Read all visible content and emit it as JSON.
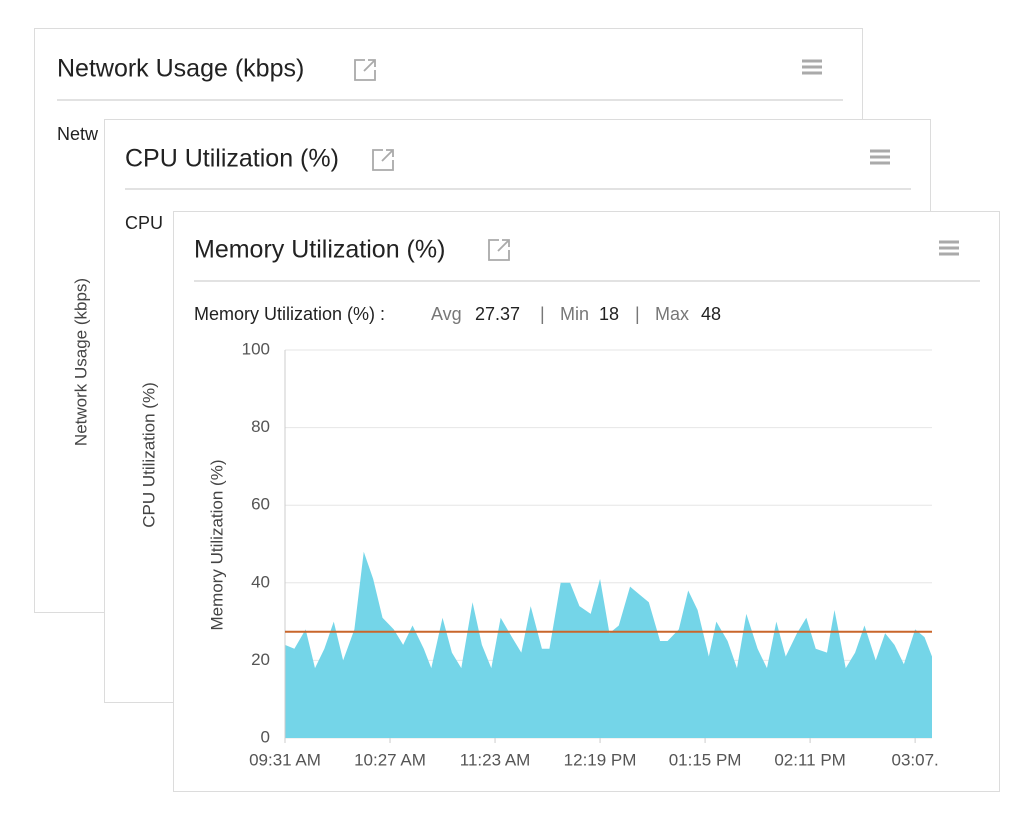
{
  "cards": [
    {
      "title": "Network Usage (kbps)",
      "stats_prefix": "Netw",
      "y_label": "Network Usage (kbps)"
    },
    {
      "title": "CPU Utilization (%)",
      "stats_prefix": "CPU",
      "y_label": "CPU Utilization (%)"
    }
  ],
  "chart_data": {
    "type": "area",
    "title": "Memory Utilization (%)",
    "y_label": "Memory Utilization (%)",
    "stats": {
      "label": "Memory Utilization (%) :",
      "avg_label": "Avg",
      "avg": 27.37,
      "min_label": "Min",
      "min": 18,
      "max_label": "Max",
      "max": 48
    },
    "color": "#74d5e8",
    "avg_color": "#c9662b",
    "x": [
      571,
      576,
      582,
      587,
      592,
      597,
      602,
      608,
      613,
      618,
      623,
      629,
      634,
      639,
      645,
      649,
      655,
      660,
      665,
      671,
      676,
      681,
      686,
      692,
      697,
      702,
      708,
      712,
      718,
      723,
      728,
      734,
      739,
      744,
      749,
      755,
      760,
      765,
      771,
      775,
      781,
      786,
      791,
      797,
      801,
      807,
      812,
      817,
      823,
      828,
      833,
      838,
      844,
      849,
      854,
      860,
      864,
      870,
      875,
      880,
      886,
      891,
      896,
      901,
      907,
      912,
      916
    ],
    "values": [
      24,
      23,
      28,
      18,
      23,
      30,
      20,
      28,
      48,
      41,
      31,
      28,
      24,
      29,
      23,
      18,
      31,
      22,
      18,
      35,
      24,
      18,
      31,
      26,
      22,
      34,
      23,
      23,
      40,
      40,
      34,
      32,
      41,
      27,
      29,
      39,
      37,
      35,
      25,
      25,
      28,
      38,
      33,
      21,
      30,
      25,
      18,
      32,
      23,
      18,
      30,
      21,
      27,
      31,
      23,
      22,
      33,
      18,
      22,
      29,
      20,
      27,
      24,
      19,
      28,
      26,
      21
    ],
    "xlim": [
      571,
      916
    ],
    "xticks": [
      {
        "value": 571,
        "label": "09:31 AM"
      },
      {
        "value": 627,
        "label": "10:27 AM"
      },
      {
        "value": 683,
        "label": "11:23 AM"
      },
      {
        "value": 739,
        "label": "12:19 PM"
      },
      {
        "value": 795,
        "label": "01:15 PM"
      },
      {
        "value": 851,
        "label": "02:11 PM"
      },
      {
        "value": 907,
        "label": "03:07."
      }
    ],
    "ylim": [
      0,
      100
    ],
    "yticks": [
      0,
      20,
      40,
      60,
      80,
      100
    ],
    "grid": true
  }
}
